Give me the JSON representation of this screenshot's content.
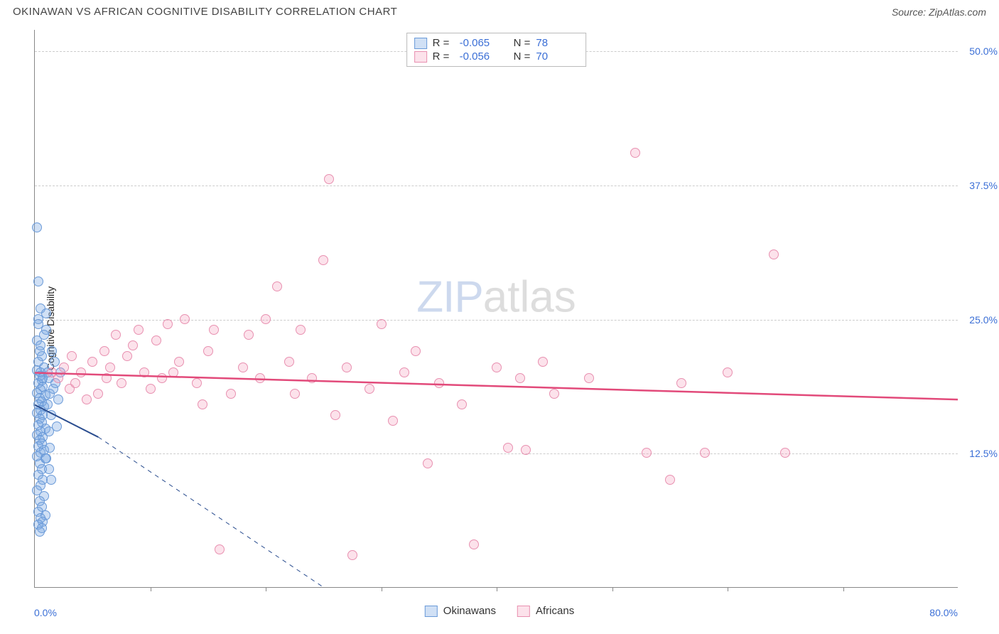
{
  "title": "OKINAWAN VS AFRICAN COGNITIVE DISABILITY CORRELATION CHART",
  "source": "Source: ZipAtlas.com",
  "ylabel": "Cognitive Disability",
  "watermark": {
    "part1": "ZIP",
    "part2": "atlas"
  },
  "chart": {
    "type": "scatter",
    "xlim": [
      0,
      80
    ],
    "ylim": [
      0,
      52
    ],
    "x_axis_labels": {
      "min": "0.0%",
      "max": "80.0%"
    },
    "y_ticks": [
      {
        "value": 12.5,
        "label": "12.5%"
      },
      {
        "value": 25.0,
        "label": "25.0%"
      },
      {
        "value": 37.5,
        "label": "37.5%"
      },
      {
        "value": 50.0,
        "label": "50.0%"
      }
    ],
    "x_tick_positions": [
      10,
      20,
      30,
      40,
      50,
      60,
      70
    ],
    "grid_color": "#cccccc",
    "background_color": "#ffffff",
    "marker_radius": 7,
    "marker_stroke_width": 1.5,
    "series": [
      {
        "name": "Okinawans",
        "color_fill": "rgba(120,165,225,0.35)",
        "color_stroke": "#6a9ad8",
        "R": "-0.065",
        "N": "78",
        "trendline": {
          "x1": 0,
          "y1": 17.0,
          "x2": 5.5,
          "y2": 14.0,
          "dash_extend_x": 25,
          "dash_extend_y": 0,
          "color": "#2a4d8f",
          "width": 2
        },
        "points": [
          [
            0.2,
            33.5
          ],
          [
            0.3,
            28.5
          ],
          [
            0.5,
            26.0
          ],
          [
            1.0,
            25.5
          ],
          [
            0.3,
            25.0
          ],
          [
            0.2,
            23.0
          ],
          [
            0.4,
            22.0
          ],
          [
            0.6,
            21.5
          ],
          [
            0.3,
            21.0
          ],
          [
            0.8,
            20.5
          ],
          [
            0.2,
            20.2
          ],
          [
            0.5,
            20.0
          ],
          [
            0.4,
            19.7
          ],
          [
            0.6,
            19.3
          ],
          [
            0.3,
            19.0
          ],
          [
            0.7,
            18.7
          ],
          [
            0.5,
            18.4
          ],
          [
            0.2,
            18.1
          ],
          [
            0.9,
            17.9
          ],
          [
            0.4,
            17.6
          ],
          [
            0.6,
            17.3
          ],
          [
            0.3,
            17.0
          ],
          [
            0.8,
            16.8
          ],
          [
            0.5,
            16.5
          ],
          [
            0.2,
            16.2
          ],
          [
            0.7,
            16.0
          ],
          [
            0.4,
            15.7
          ],
          [
            0.6,
            15.4
          ],
          [
            0.3,
            15.1
          ],
          [
            0.9,
            14.8
          ],
          [
            0.5,
            14.5
          ],
          [
            0.2,
            14.2
          ],
          [
            0.7,
            14.0
          ],
          [
            0.4,
            13.7
          ],
          [
            0.6,
            13.4
          ],
          [
            0.3,
            13.1
          ],
          [
            0.8,
            12.8
          ],
          [
            0.5,
            12.5
          ],
          [
            0.2,
            12.2
          ],
          [
            0.9,
            12.0
          ],
          [
            0.4,
            11.5
          ],
          [
            0.6,
            11.0
          ],
          [
            0.3,
            10.5
          ],
          [
            0.7,
            10.0
          ],
          [
            0.5,
            9.5
          ],
          [
            0.2,
            9.0
          ],
          [
            0.8,
            8.5
          ],
          [
            0.4,
            8.0
          ],
          [
            0.6,
            7.5
          ],
          [
            0.3,
            7.0
          ],
          [
            0.9,
            6.7
          ],
          [
            0.5,
            6.4
          ],
          [
            0.7,
            6.1
          ],
          [
            1.2,
            19.5
          ],
          [
            1.3,
            18.0
          ],
          [
            1.1,
            17.0
          ],
          [
            1.4,
            16.0
          ],
          [
            1.2,
            14.5
          ],
          [
            1.5,
            22.0
          ],
          [
            1.1,
            20.0
          ],
          [
            1.3,
            13.0
          ],
          [
            1.0,
            12.0
          ],
          [
            1.2,
            11.0
          ],
          [
            1.4,
            10.0
          ],
          [
            1.0,
            24.0
          ],
          [
            0.3,
            5.8
          ],
          [
            0.6,
            5.5
          ],
          [
            0.4,
            5.2
          ],
          [
            1.6,
            18.5
          ],
          [
            1.8,
            19.0
          ],
          [
            2.0,
            17.5
          ],
          [
            2.2,
            20.0
          ],
          [
            1.7,
            21.0
          ],
          [
            1.9,
            15.0
          ],
          [
            0.8,
            23.5
          ],
          [
            0.5,
            22.5
          ],
          [
            0.3,
            24.5
          ],
          [
            0.7,
            19.5
          ]
        ]
      },
      {
        "name": "Africans",
        "color_fill": "rgba(245,160,190,0.30)",
        "color_stroke": "#e890b0",
        "R": "-0.056",
        "N": "70",
        "trendline": {
          "x1": 0,
          "y1": 20.0,
          "x2": 80,
          "y2": 17.5,
          "color": "#e24a7a",
          "width": 2.5
        },
        "points": [
          [
            1.5,
            20.0
          ],
          [
            2.0,
            19.5
          ],
          [
            2.5,
            20.5
          ],
          [
            3.0,
            18.5
          ],
          [
            3.5,
            19.0
          ],
          [
            4.0,
            20.0
          ],
          [
            4.5,
            17.5
          ],
          [
            5.0,
            21.0
          ],
          [
            5.5,
            18.0
          ],
          [
            6.0,
            22.0
          ],
          [
            6.5,
            20.5
          ],
          [
            7.0,
            23.5
          ],
          [
            7.5,
            19.0
          ],
          [
            8.0,
            21.5
          ],
          [
            8.5,
            22.5
          ],
          [
            9.0,
            24.0
          ],
          [
            9.5,
            20.0
          ],
          [
            10.0,
            18.5
          ],
          [
            10.5,
            23.0
          ],
          [
            11.0,
            19.5
          ],
          [
            11.5,
            24.5
          ],
          [
            12.0,
            20.0
          ],
          [
            12.5,
            21.0
          ],
          [
            13.0,
            25.0
          ],
          [
            14.0,
            19.0
          ],
          [
            15.0,
            22.0
          ],
          [
            15.5,
            24.0
          ],
          [
            16.0,
            3.5
          ],
          [
            17.0,
            18.0
          ],
          [
            18.0,
            20.5
          ],
          [
            18.5,
            23.5
          ],
          [
            19.5,
            19.5
          ],
          [
            20.0,
            25.0
          ],
          [
            21.0,
            28.0
          ],
          [
            22.0,
            21.0
          ],
          [
            22.5,
            18.0
          ],
          [
            23.0,
            24.0
          ],
          [
            24.0,
            19.5
          ],
          [
            25.0,
            30.5
          ],
          [
            25.5,
            38.0
          ],
          [
            26.0,
            16.0
          ],
          [
            27.0,
            20.5
          ],
          [
            27.5,
            3.0
          ],
          [
            29.0,
            18.5
          ],
          [
            30.0,
            24.5
          ],
          [
            31.0,
            15.5
          ],
          [
            32.0,
            20.0
          ],
          [
            33.0,
            22.0
          ],
          [
            34.0,
            11.5
          ],
          [
            35.0,
            19.0
          ],
          [
            37.0,
            17.0
          ],
          [
            38.0,
            4.0
          ],
          [
            40.0,
            20.5
          ],
          [
            41.0,
            13.0
          ],
          [
            42.0,
            19.5
          ],
          [
            44.0,
            21.0
          ],
          [
            45.0,
            18.0
          ],
          [
            48.0,
            19.5
          ],
          [
            52.0,
            40.5
          ],
          [
            53.0,
            12.5
          ],
          [
            55.0,
            10.0
          ],
          [
            56.0,
            19.0
          ],
          [
            58.0,
            12.5
          ],
          [
            60.0,
            20.0
          ],
          [
            64.0,
            31.0
          ],
          [
            65.0,
            12.5
          ],
          [
            42.5,
            12.8
          ],
          [
            14.5,
            17.0
          ],
          [
            6.2,
            19.5
          ],
          [
            3.2,
            21.5
          ]
        ]
      }
    ]
  },
  "legend_top_labels": {
    "R": "R =",
    "N": "N ="
  },
  "legend_bottom": [
    {
      "label": "Okinawans"
    },
    {
      "label": "Africans"
    }
  ]
}
